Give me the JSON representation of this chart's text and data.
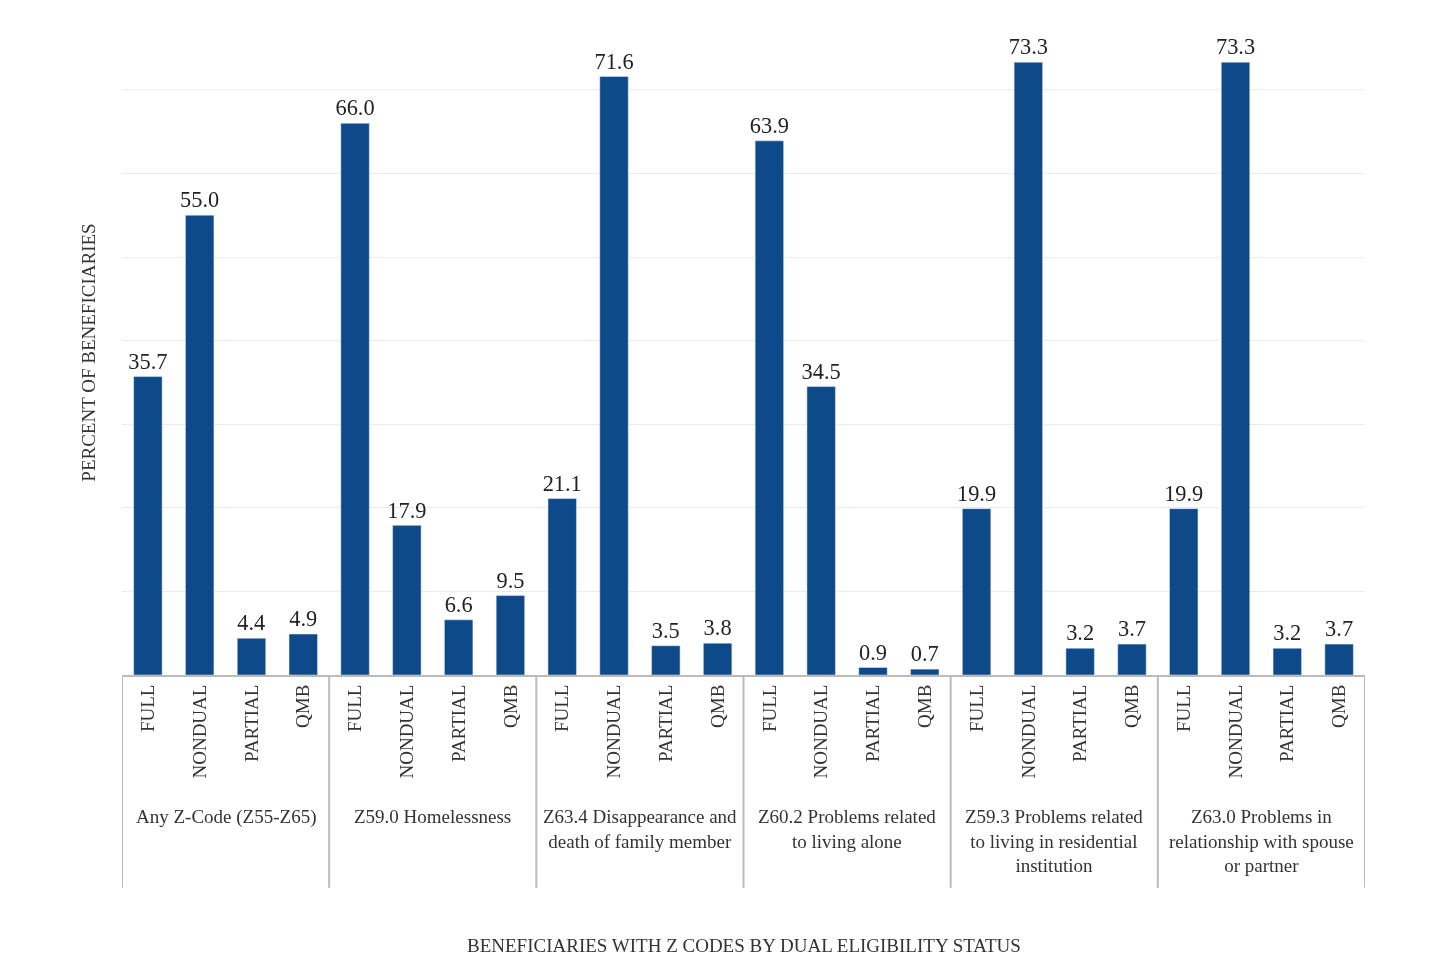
{
  "chart_data": {
    "type": "bar",
    "ylabel": "PERCENT OF BENEFICIARIES",
    "categories": [
      "FULL",
      "NONDUAL",
      "PARTIAL",
      "QMB",
      "FULL",
      "NONDUAL",
      "PARTIAL",
      "QMB",
      "FULL",
      "NONDUAL",
      "PARTIAL",
      "QMB",
      "FULL",
      "NONDUAL",
      "PARTIAL",
      "QMB",
      "FULL",
      "NONDUAL",
      "PARTIAL",
      "QMB",
      "FULL",
      "NONDUAL",
      "PARTIAL",
      "QMB"
    ],
    "values": [
      35.7,
      55.0,
      4.4,
      4.9,
      66.0,
      17.9,
      6.6,
      9.5,
      21.1,
      71.6,
      3.5,
      3.8,
      63.9,
      34.5,
      0.9,
      0.7,
      19.9,
      73.3,
      3.2,
      3.7,
      19.9,
      73.3,
      3.2,
      3.7
    ],
    "color": "#0e4a8a",
    "value_labels": [
      "35.7",
      "55.0",
      "4.4",
      "4.9",
      "66.0",
      "17.9",
      "6.6",
      "9.5",
      "21.1",
      "71.6",
      "3.5",
      "3.8",
      "63.9",
      "34.5",
      "0.9",
      "0.7",
      "19.9",
      "73.3",
      "3.2",
      "3.7",
      "19.9",
      "73.3",
      "3.2",
      "3.7"
    ],
    "annotations": [
      "Any Z-Code (Z55-Z65)",
      "Z59.0 Homelessness",
      "Z63.4 Disappearance and death of family member",
      "Z60.2 Problems related to living alone",
      "Z59.3 Problems related to living in residential institution",
      "Z63.0 Problems in relationship with spouse or partner",
      "BENEFICIARIES WITH Z CODES BY DUAL ELIGIBILITY STATUS"
    ],
    "grid": "y",
    "tick_labels": "x",
    "legend": false
  }
}
